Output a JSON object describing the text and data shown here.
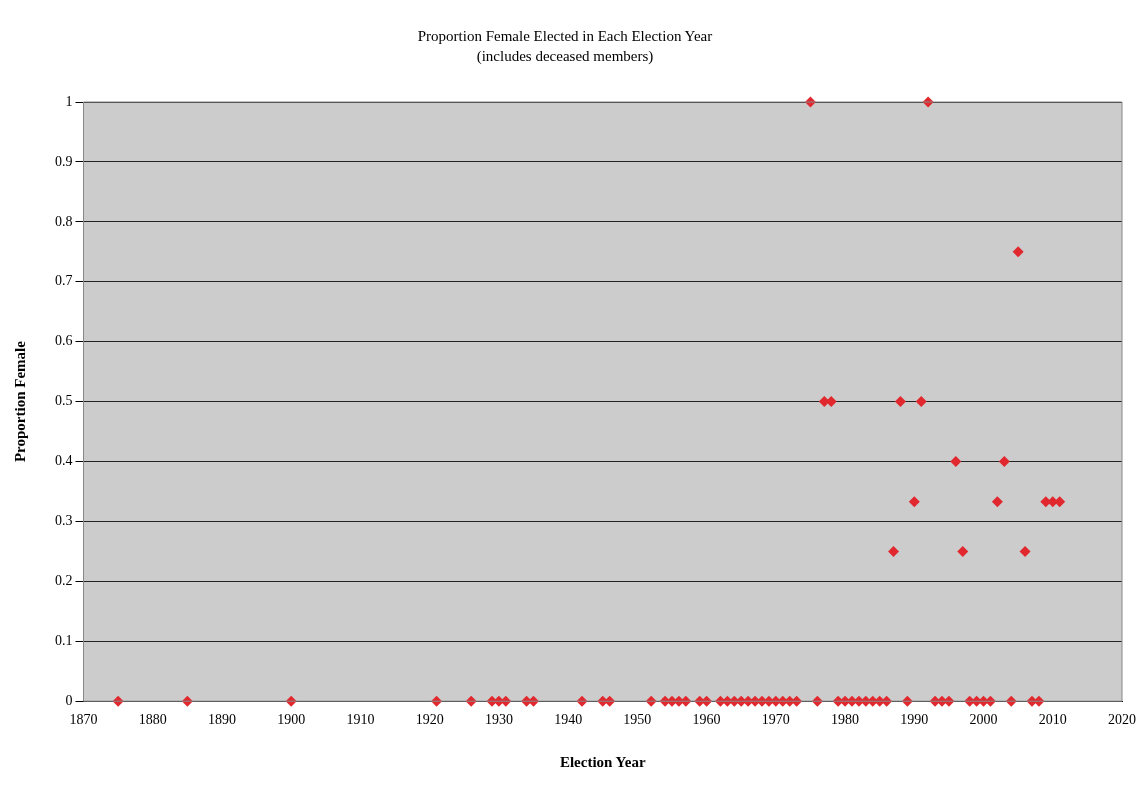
{
  "chart_data": {
    "type": "scatter",
    "title": "Proportion Female Elected in Each Election Year",
    "subtitle": "(includes deceased members)",
    "xlabel": "Election Year",
    "ylabel": "Proportion Female",
    "x": [
      1875,
      1885,
      1900,
      1921,
      1926,
      1929,
      1930,
      1931,
      1934,
      1935,
      1942,
      1945,
      1946,
      1952,
      1954,
      1955,
      1956,
      1957,
      1959,
      1960,
      1962,
      1963,
      1964,
      1965,
      1966,
      1967,
      1968,
      1969,
      1970,
      1971,
      1972,
      1973,
      1975,
      1976,
      1977,
      1978,
      1979,
      1980,
      1981,
      1982,
      1983,
      1984,
      1985,
      1986,
      1987,
      1988,
      1989,
      1990,
      1991,
      1992,
      1993,
      1994,
      1995,
      1996,
      1997,
      1998,
      1999,
      2000,
      2001,
      2002,
      2003,
      2004,
      2005,
      2006,
      2007,
      2008,
      2009,
      2010,
      2011
    ],
    "series": [
      {
        "color": "#e0282e",
        "values": [
          0,
          0,
          0,
          0,
          0,
          0,
          0,
          0,
          0,
          0,
          0,
          0,
          0,
          0,
          0,
          0,
          0,
          0,
          0,
          0,
          0,
          0,
          0,
          0,
          0,
          0,
          0,
          0,
          0,
          0,
          0,
          0,
          1,
          0,
          0.5,
          0.5,
          0,
          0,
          0,
          0,
          0,
          0,
          0,
          0,
          0.25,
          0.5,
          0,
          0.333,
          0.5,
          1,
          0,
          0,
          0,
          0.4,
          0.25,
          0,
          0,
          0,
          0,
          0.333,
          0.4,
          0,
          0.75,
          0.25,
          0,
          0,
          0.333,
          0.333,
          0.333
        ]
      }
    ],
    "xlim": [
      1870,
      2020
    ],
    "xticks": [
      1870,
      1880,
      1890,
      1900,
      1910,
      1920,
      1930,
      1940,
      1950,
      1960,
      1970,
      1980,
      1990,
      2000,
      2010,
      2020
    ],
    "ylim": [
      0,
      1
    ],
    "yticks": [
      0,
      0.1,
      0.2,
      0.3,
      0.4,
      0.5,
      0.6,
      0.7,
      0.8,
      0.9,
      1
    ],
    "grid": "y",
    "marker": "diamond",
    "legend": false
  }
}
